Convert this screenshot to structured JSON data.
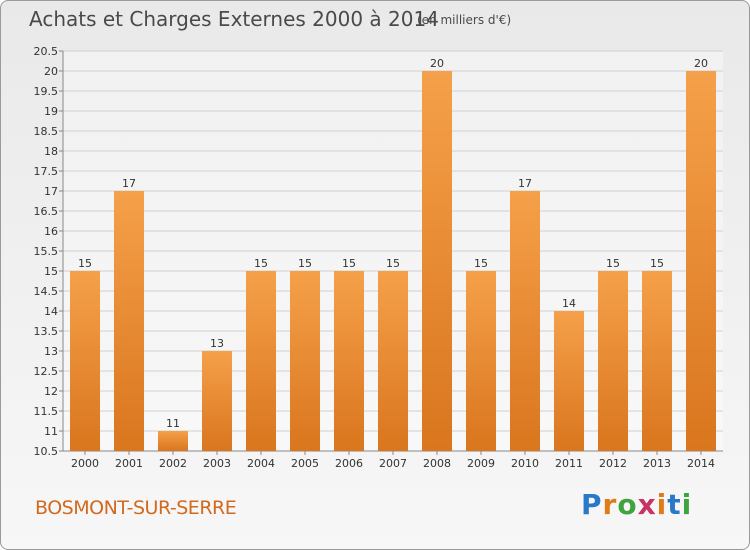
{
  "header": {
    "title": "Achats et Charges Externes 2000 à 2014",
    "subtitle": "(en milliers d'€)"
  },
  "footer": {
    "town": "BOSMONT-SUR-SERRE",
    "logo": {
      "letters": [
        "P",
        "r",
        "o",
        "x",
        "i",
        "t",
        "i"
      ],
      "colors": [
        "#2a78c8",
        "#e07b1a",
        "#3fa33f",
        "#c83264",
        "#e07b1a",
        "#2a78c8",
        "#3fa33f"
      ]
    }
  },
  "colors": {
    "bar_top": "#f5a04a",
    "bar_bottom": "#d9761e",
    "grid": "#d0d0d0",
    "axis": "#888888"
  },
  "chart_data": {
    "type": "bar",
    "title": "Achats et Charges Externes 2000 à 2014",
    "subtitle": "(en milliers d'€)",
    "xlabel": "",
    "ylabel": "",
    "categories": [
      "2000",
      "2001",
      "2002",
      "2003",
      "2004",
      "2005",
      "2006",
      "2007",
      "2008",
      "2009",
      "2010",
      "2011",
      "2012",
      "2013",
      "2014"
    ],
    "values": [
      15,
      17,
      11,
      13,
      15,
      15,
      15,
      15,
      20,
      15,
      17,
      14,
      15,
      15,
      20
    ],
    "data_labels": [
      "15",
      "17",
      "11",
      "13",
      "15",
      "15",
      "15",
      "15",
      "20",
      "15",
      "17",
      "14",
      "15",
      "15",
      "20"
    ],
    "ylim": [
      10.5,
      20.5
    ],
    "yticks": [
      10.5,
      11,
      11.5,
      12,
      12.5,
      13,
      13.5,
      14,
      14.5,
      15,
      15.5,
      16,
      16.5,
      17,
      17.5,
      18,
      18.5,
      19,
      19.5,
      20,
      20.5
    ],
    "ytick_labels": [
      "10.5",
      "11",
      "11.5",
      "12",
      "12.5",
      "13",
      "13.5",
      "14",
      "14.5",
      "15",
      "15.5",
      "16",
      "16.5",
      "17",
      "17.5",
      "18",
      "18.5",
      "19",
      "19.5",
      "20",
      "20.5"
    ],
    "grid": true,
    "legend": "none"
  }
}
